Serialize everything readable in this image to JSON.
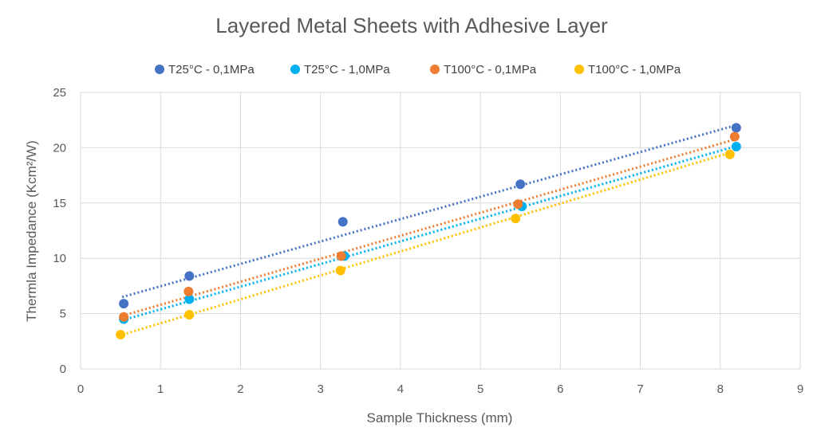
{
  "chart_data": {
    "type": "scatter",
    "title": "Layered Metal Sheets with Adhesive Layer",
    "xlabel": "Sample Thickness (mm)",
    "ylabel": "Thermla Impedance (Kcm²/W)",
    "xlim": [
      0,
      9
    ],
    "ylim": [
      0,
      25
    ],
    "x_ticks": [
      "0",
      "1",
      "2",
      "3",
      "4",
      "5",
      "6",
      "7",
      "8",
      "9"
    ],
    "y_ticks": [
      "0",
      "5",
      "10",
      "15",
      "20",
      "25"
    ],
    "grid": true,
    "legend_position": "top",
    "trendlines": "linear, dotted",
    "series": [
      {
        "name": "T25°C - 0,1MPa",
        "color": "#4472C4",
        "points": [
          [
            0.54,
            5.9
          ],
          [
            1.36,
            8.4
          ],
          [
            3.28,
            13.3
          ],
          [
            5.5,
            16.7
          ],
          [
            8.2,
            21.8
          ]
        ],
        "trend": [
          [
            0.52,
            6.5
          ],
          [
            8.18,
            22.0
          ]
        ]
      },
      {
        "name": "T25°C - 1,0MPa",
        "color": "#00B0F0",
        "points": [
          [
            0.54,
            4.5
          ],
          [
            1.36,
            6.3
          ],
          [
            3.3,
            10.2
          ],
          [
            5.52,
            14.7
          ],
          [
            8.2,
            20.1
          ]
        ],
        "trend": [
          [
            0.52,
            4.4
          ],
          [
            8.18,
            20.1
          ]
        ]
      },
      {
        "name": "T100°C - 0,1MPa",
        "color": "#ED7D31",
        "points": [
          [
            0.54,
            4.7
          ],
          [
            1.35,
            7.0
          ],
          [
            3.26,
            10.2
          ],
          [
            5.47,
            14.9
          ],
          [
            8.18,
            21.0
          ]
        ],
        "trend": [
          [
            0.52,
            4.8
          ],
          [
            8.16,
            20.7
          ]
        ]
      },
      {
        "name": "T100°C - 1,0MPa",
        "color": "#FFC000",
        "points": [
          [
            0.5,
            3.1
          ],
          [
            1.36,
            4.9
          ],
          [
            3.25,
            8.9
          ],
          [
            5.44,
            13.6
          ],
          [
            8.12,
            19.4
          ]
        ],
        "trend": [
          [
            0.48,
            3.0
          ],
          [
            8.1,
            19.5
          ]
        ]
      }
    ]
  }
}
